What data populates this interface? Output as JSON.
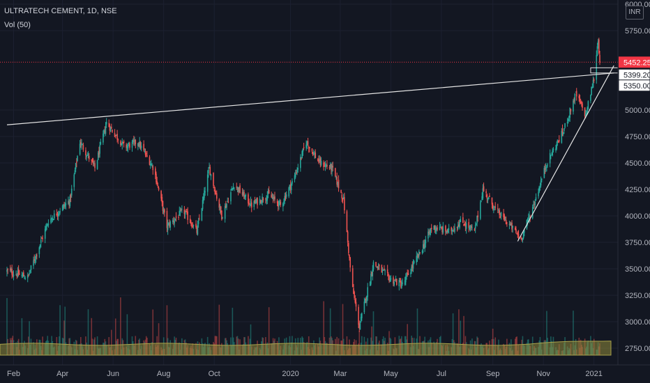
{
  "header": {
    "symbol_line": "ULTRATECH CEMENT, 1D, NSE",
    "volume_label": "Vol (50)"
  },
  "currency_badge": "INR",
  "colors": {
    "background": "#131722",
    "up": "#26a69a",
    "down": "#ef5350",
    "volume_ma": "#8f8a3a",
    "trendline": "#e6e6e6",
    "price_tag": "#f23645",
    "axis_text": "#b2b5be"
  },
  "chart_data": {
    "type": "candlestick",
    "title": "ULTRATECH CEMENT, 1D, NSE",
    "ylim": [
      2650,
      6000
    ],
    "y_ticks": [
      2750,
      3000,
      3250,
      3500,
      3750,
      4000,
      4250,
      4500,
      4750,
      5000,
      5750,
      6000
    ],
    "y_tick_labels": [
      "2750.00",
      "3000.00",
      "3250.00",
      "3500.00",
      "3750.00",
      "4000.00",
      "4250.00",
      "4500.00",
      "4750.00",
      "5000.00",
      "5750.00",
      "6000.00"
    ],
    "x_ticks": [
      "Feb",
      "Apr",
      "Jun",
      "Aug",
      "Oct",
      "2020",
      "Mar",
      "May",
      "Jul",
      "Sep",
      "Nov",
      "2021"
    ],
    "x_tick_dates": [
      "2019-02-01",
      "2019-04-01",
      "2019-06-01",
      "2019-08-01",
      "2019-10-01",
      "2020-01-01",
      "2020-03-01",
      "2020-05-01",
      "2020-07-01",
      "2020-09-01",
      "2020-11-01",
      "2021-01-01"
    ],
    "date_range": [
      "2019-01-24",
      "2021-01-08"
    ],
    "close_path": [
      {
        "date": "2019-01-24",
        "close": 3480
      },
      {
        "date": "2019-02-18",
        "close": 3420
      },
      {
        "date": "2019-03-15",
        "close": 3950
      },
      {
        "date": "2019-04-10",
        "close": 4150
      },
      {
        "date": "2019-04-22",
        "close": 4700
      },
      {
        "date": "2019-05-10",
        "close": 4450
      },
      {
        "date": "2019-05-24",
        "close": 4880
      },
      {
        "date": "2019-06-15",
        "close": 4650
      },
      {
        "date": "2019-07-01",
        "close": 4700
      },
      {
        "date": "2019-07-20",
        "close": 4450
      },
      {
        "date": "2019-08-05",
        "close": 3900
      },
      {
        "date": "2019-08-25",
        "close": 4050
      },
      {
        "date": "2019-09-10",
        "close": 3850
      },
      {
        "date": "2019-09-25",
        "close": 4450
      },
      {
        "date": "2019-10-10",
        "close": 4000
      },
      {
        "date": "2019-10-25",
        "close": 4300
      },
      {
        "date": "2019-11-15",
        "close": 4100
      },
      {
        "date": "2019-12-05",
        "close": 4200
      },
      {
        "date": "2019-12-20",
        "close": 4100
      },
      {
        "date": "2020-01-05",
        "close": 4350
      },
      {
        "date": "2020-01-20",
        "close": 4700
      },
      {
        "date": "2020-02-05",
        "close": 4500
      },
      {
        "date": "2020-02-20",
        "close": 4450
      },
      {
        "date": "2020-03-05",
        "close": 4150
      },
      {
        "date": "2020-03-15",
        "close": 3350
      },
      {
        "date": "2020-03-24",
        "close": 2950
      },
      {
        "date": "2020-04-10",
        "close": 3550
      },
      {
        "date": "2020-05-01",
        "close": 3400
      },
      {
        "date": "2020-05-15",
        "close": 3350
      },
      {
        "date": "2020-06-05",
        "close": 3650
      },
      {
        "date": "2020-06-20",
        "close": 3900
      },
      {
        "date": "2020-07-10",
        "close": 3850
      },
      {
        "date": "2020-07-25",
        "close": 3950
      },
      {
        "date": "2020-08-10",
        "close": 3850
      },
      {
        "date": "2020-08-20",
        "close": 4250
      },
      {
        "date": "2020-09-05",
        "close": 4050
      },
      {
        "date": "2020-09-25",
        "close": 3880
      },
      {
        "date": "2020-10-05",
        "close": 3780
      },
      {
        "date": "2020-10-20",
        "close": 4100
      },
      {
        "date": "2020-11-05",
        "close": 4500
      },
      {
        "date": "2020-11-25",
        "close": 4800
      },
      {
        "date": "2020-12-10",
        "close": 5150
      },
      {
        "date": "2020-12-22",
        "close": 4950
      },
      {
        "date": "2021-01-01",
        "close": 5300
      },
      {
        "date": "2021-01-06",
        "close": 5680
      },
      {
        "date": "2021-01-08",
        "close": 5452.25
      }
    ],
    "volume_ma_level": 0.13,
    "price_labels": [
      {
        "label": "5452.25",
        "value": 5452.25,
        "role": "last-price"
      },
      {
        "label": "5399.20",
        "value": 5399.2,
        "role": "level"
      },
      {
        "label": "5350.00",
        "value": 5350,
        "role": "level"
      }
    ],
    "trendlines": [
      {
        "name": "resistance",
        "from": {
          "date": "2019-01-24",
          "price": 4860
        },
        "to": {
          "date": "2021-01-25",
          "price": 5350
        }
      },
      {
        "name": "support",
        "from": {
          "date": "2020-10-01",
          "price": 3760
        },
        "to": {
          "date": "2021-01-25",
          "price": 5420
        }
      }
    ]
  }
}
